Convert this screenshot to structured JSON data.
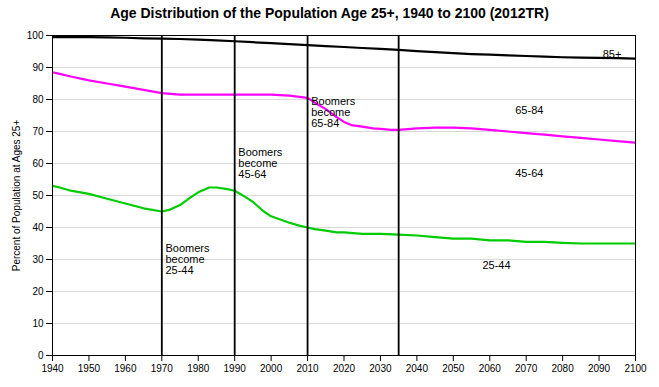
{
  "chart_data": {
    "type": "line",
    "title": "Age Distribution of the Population Age 25+, 1940 to 2100 (2012TR)",
    "ylabel": "Percent of Population at Ages 25+",
    "xlim": [
      1940,
      2100
    ],
    "ylim": [
      0,
      100
    ],
    "xticks": [
      1940,
      1950,
      1960,
      1970,
      1980,
      1990,
      2000,
      2010,
      2020,
      2030,
      2040,
      2050,
      2060,
      2070,
      2080,
      2090,
      2100
    ],
    "yticks": [
      0,
      10,
      20,
      30,
      40,
      50,
      60,
      70,
      80,
      90,
      100
    ],
    "grid": true,
    "series": [
      {
        "color": "#000000",
        "x": [
          1940,
          1942,
          1945,
          1950,
          1955,
          1960,
          1965,
          1970,
          1975,
          1980,
          1985,
          1990,
          1995,
          2000,
          2005,
          2010,
          2015,
          2020,
          2025,
          2030,
          2035,
          2040,
          2045,
          2050,
          2055,
          2060,
          2065,
          2070,
          2075,
          2080,
          2085,
          2090,
          2095,
          2100
        ],
        "values": [
          99.5,
          99.5,
          99.5,
          99.5,
          99.4,
          99.3,
          99.1,
          99.0,
          98.9,
          98.7,
          98.5,
          98.2,
          97.9,
          97.6,
          97.3,
          97.0,
          96.7,
          96.4,
          96.1,
          95.8,
          95.5,
          95.1,
          94.8,
          94.5,
          94.2,
          94.0,
          93.8,
          93.6,
          93.4,
          93.2,
          93.1,
          93.0,
          92.9,
          92.8
        ]
      },
      {
        "color": "#FF00FF",
        "x": [
          1940,
          1942,
          1945,
          1950,
          1955,
          1960,
          1965,
          1970,
          1975,
          1980,
          1985,
          1990,
          1995,
          2000,
          2005,
          2010,
          2012,
          2015,
          2018,
          2020,
          2022,
          2025,
          2028,
          2030,
          2033,
          2035,
          2040,
          2045,
          2050,
          2055,
          2060,
          2065,
          2070,
          2075,
          2080,
          2085,
          2090,
          2095,
          2100
        ],
        "values": [
          88.5,
          88.0,
          87.2,
          86.0,
          85.0,
          84.0,
          83.0,
          82.0,
          81.5,
          81.5,
          81.5,
          81.5,
          81.5,
          81.5,
          81.2,
          80.5,
          79.0,
          77.0,
          74.5,
          73.0,
          72.0,
          71.5,
          71.0,
          70.8,
          70.5,
          70.5,
          71.0,
          71.2,
          71.2,
          71.0,
          70.5,
          70.0,
          69.5,
          69.0,
          68.5,
          68.0,
          67.5,
          67.0,
          66.5
        ]
      },
      {
        "color": "#00CC00",
        "x": [
          1940,
          1942,
          1945,
          1950,
          1955,
          1960,
          1965,
          1970,
          1972,
          1975,
          1978,
          1980,
          1983,
          1985,
          1988,
          1990,
          1993,
          1995,
          1998,
          2000,
          2005,
          2008,
          2010,
          2012,
          2015,
          2018,
          2020,
          2025,
          2030,
          2035,
          2040,
          2045,
          2050,
          2055,
          2060,
          2065,
          2070,
          2075,
          2080,
          2085,
          2090,
          2095,
          2100
        ],
        "values": [
          53.0,
          52.5,
          51.5,
          50.5,
          49.0,
          47.5,
          46.0,
          45.0,
          45.5,
          47.0,
          49.5,
          51.0,
          52.5,
          52.5,
          52.0,
          51.5,
          49.5,
          48.0,
          45.0,
          43.5,
          41.5,
          40.5,
          40.0,
          39.5,
          39.0,
          38.5,
          38.5,
          38.0,
          38.0,
          37.8,
          37.5,
          37.0,
          36.5,
          36.5,
          36.0,
          36.0,
          35.5,
          35.5,
          35.2,
          35.0,
          35.0,
          35.0,
          35.0
        ]
      }
    ],
    "vlines": [
      1970,
      1990,
      2010,
      2035
    ],
    "annotations": [
      {
        "text": "Boomers\nbecome\n25-44",
        "x": 1971,
        "y": 30
      },
      {
        "text": "Boomers\nbecome\n45-64",
        "x": 1991,
        "y": 60
      },
      {
        "text": "Boomers\nbecome\n65-84",
        "x": 2011,
        "y": 76
      },
      {
        "text": "85+",
        "x": 2091,
        "y": 94.0
      },
      {
        "text": "65-84",
        "x": 2067,
        "y": 76.5
      },
      {
        "text": "45-64",
        "x": 2067,
        "y": 57.0
      },
      {
        "text": "25-44",
        "x": 2058,
        "y": 28.0
      }
    ]
  }
}
